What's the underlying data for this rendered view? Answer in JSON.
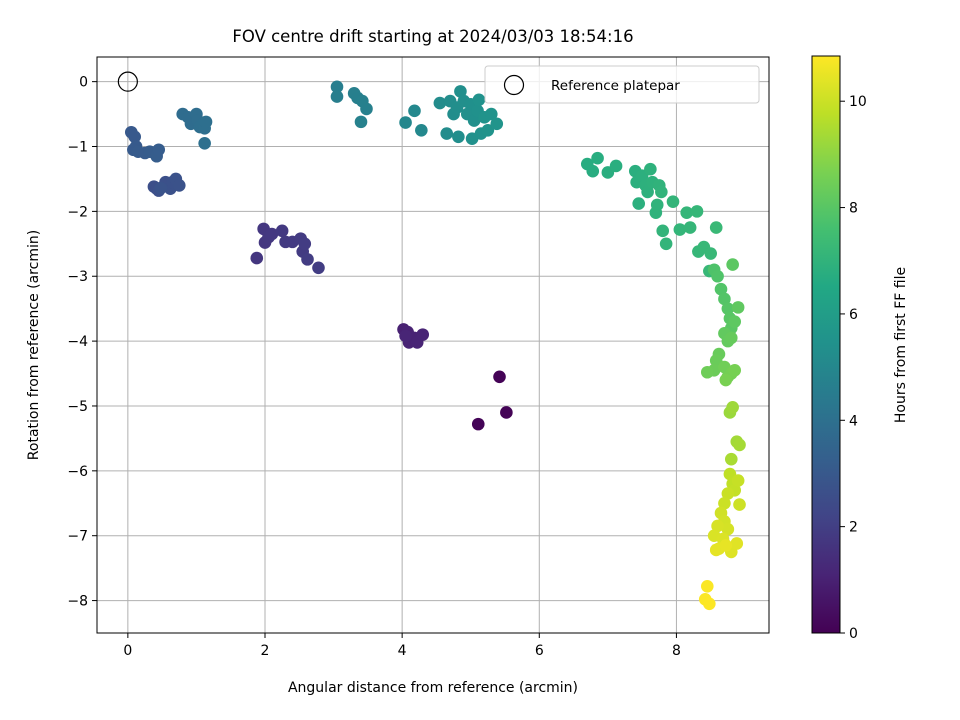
{
  "chart_data": {
    "type": "scatter",
    "title": "FOV centre drift starting at 2024/03/03 18:54:16",
    "xlabel": "Angular distance from reference (arcmin)",
    "ylabel": "Rotation from reference (arcmin)",
    "xlim": [
      -0.45,
      9.35
    ],
    "ylim": [
      -8.5,
      0.38
    ],
    "xticks": [
      0,
      2,
      4,
      6,
      8
    ],
    "yticks": [
      0,
      -1,
      -2,
      -3,
      -4,
      -5,
      -6,
      -7,
      -8
    ],
    "grid": true,
    "legend": {
      "placement": "top-right",
      "entries": [
        "Reference platepar"
      ]
    },
    "reference_point": {
      "x": 0,
      "y": 0,
      "label": "Reference platepar"
    },
    "colorbar": {
      "label": "Hours from first FF file",
      "range": [
        0,
        10.85
      ],
      "ticks": [
        0,
        2,
        4,
        6,
        8,
        10
      ],
      "colormap": "viridis",
      "colors": [
        "#440154",
        "#482475",
        "#414487",
        "#355f8d",
        "#2a788e",
        "#21918c",
        "#22a884",
        "#44bf70",
        "#7ad151",
        "#bddf26",
        "#fde725"
      ]
    },
    "series": [
      {
        "points": [
          [
            5.42,
            -4.55,
            0.05
          ],
          [
            5.52,
            -5.1,
            0.08
          ],
          [
            5.11,
            -5.28,
            0.1
          ],
          [
            4.02,
            -3.82,
            1.0
          ],
          [
            4.08,
            -3.86,
            1.02
          ],
          [
            4.1,
            -4.02,
            1.04
          ],
          [
            4.18,
            -3.95,
            1.06
          ],
          [
            4.22,
            -4.02,
            1.08
          ],
          [
            4.3,
            -3.9,
            1.1
          ],
          [
            4.05,
            -3.92,
            1.12
          ],
          [
            1.88,
            -2.72,
            1.7
          ],
          [
            1.98,
            -2.27,
            1.72
          ],
          [
            2.0,
            -2.48,
            1.74
          ],
          [
            2.05,
            -2.4,
            1.76
          ],
          [
            2.1,
            -2.35,
            1.78
          ],
          [
            2.25,
            -2.3,
            1.8
          ],
          [
            2.3,
            -2.47,
            1.82
          ],
          [
            2.4,
            -2.47,
            1.84
          ],
          [
            2.52,
            -2.42,
            1.86
          ],
          [
            2.55,
            -2.62,
            1.88
          ],
          [
            2.58,
            -2.5,
            1.9
          ],
          [
            2.62,
            -2.74,
            1.92
          ],
          [
            2.78,
            -2.87,
            1.94
          ],
          [
            0.38,
            -1.62,
            2.6
          ],
          [
            0.42,
            -1.65,
            2.62
          ],
          [
            0.45,
            -1.68,
            2.64
          ],
          [
            0.55,
            -1.55,
            2.66
          ],
          [
            0.62,
            -1.65,
            2.68
          ],
          [
            0.65,
            -1.55,
            2.7
          ],
          [
            0.7,
            -1.5,
            2.72
          ],
          [
            0.75,
            -1.6,
            2.74
          ],
          [
            0.48,
            -1.64,
            2.76
          ],
          [
            0.05,
            -0.78,
            3.0
          ],
          [
            0.1,
            -0.85,
            3.02
          ],
          [
            0.12,
            -1.0,
            3.04
          ],
          [
            0.08,
            -1.05,
            3.06
          ],
          [
            0.15,
            -1.08,
            3.08
          ],
          [
            0.25,
            -1.1,
            3.1
          ],
          [
            0.32,
            -1.08,
            3.12
          ],
          [
            0.4,
            -1.1,
            3.14
          ],
          [
            0.42,
            -1.15,
            3.16
          ],
          [
            0.45,
            -1.05,
            3.18
          ],
          [
            0.8,
            -0.5,
            3.8
          ],
          [
            0.88,
            -0.55,
            3.82
          ],
          [
            0.92,
            -0.65,
            3.84
          ],
          [
            1.0,
            -0.5,
            3.86
          ],
          [
            1.02,
            -0.6,
            3.88
          ],
          [
            1.05,
            -0.7,
            3.9
          ],
          [
            1.1,
            -0.65,
            3.92
          ],
          [
            1.12,
            -0.72,
            3.94
          ],
          [
            1.14,
            -0.62,
            3.96
          ],
          [
            1.12,
            -0.95,
            3.98
          ],
          [
            3.05,
            -0.08,
            4.6
          ],
          [
            3.05,
            -0.23,
            4.62
          ],
          [
            3.3,
            -0.18,
            4.64
          ],
          [
            3.35,
            -0.25,
            4.66
          ],
          [
            3.42,
            -0.3,
            4.68
          ],
          [
            3.48,
            -0.42,
            4.7
          ],
          [
            3.4,
            -0.62,
            4.72
          ],
          [
            4.05,
            -0.63,
            5.0
          ],
          [
            4.18,
            -0.45,
            5.02
          ],
          [
            4.28,
            -0.75,
            5.04
          ],
          [
            4.55,
            -0.33,
            5.2
          ],
          [
            4.65,
            -0.8,
            5.22
          ],
          [
            4.7,
            -0.3,
            5.24
          ],
          [
            4.75,
            -0.5,
            5.26
          ],
          [
            4.8,
            -0.4,
            5.28
          ],
          [
            4.82,
            -0.85,
            5.3
          ],
          [
            4.85,
            -0.15,
            5.32
          ],
          [
            4.9,
            -0.3,
            5.34
          ],
          [
            4.95,
            -0.5,
            5.36
          ],
          [
            5.0,
            -0.35,
            5.38
          ],
          [
            5.05,
            -0.6,
            5.4
          ],
          [
            5.02,
            -0.88,
            5.42
          ],
          [
            5.1,
            -0.45,
            5.44
          ],
          [
            5.12,
            -0.28,
            5.46
          ],
          [
            5.15,
            -0.8,
            5.48
          ],
          [
            5.2,
            -0.55,
            5.5
          ],
          [
            5.25,
            -0.75,
            5.52
          ],
          [
            5.3,
            -0.5,
            5.54
          ],
          [
            5.38,
            -0.65,
            5.56
          ],
          [
            6.7,
            -1.27,
            6.7
          ],
          [
            6.78,
            -1.38,
            6.72
          ],
          [
            6.85,
            -1.18,
            6.74
          ],
          [
            7.0,
            -1.4,
            6.76
          ],
          [
            7.12,
            -1.3,
            6.78
          ],
          [
            7.4,
            -1.38,
            6.8
          ],
          [
            7.42,
            -1.55,
            6.82
          ],
          [
            7.45,
            -1.88,
            6.84
          ],
          [
            7.5,
            -1.45,
            6.86
          ],
          [
            7.55,
            -1.6,
            6.88
          ],
          [
            7.58,
            -1.7,
            6.9
          ],
          [
            7.62,
            -1.35,
            6.92
          ],
          [
            7.65,
            -1.55,
            6.94
          ],
          [
            7.7,
            -2.02,
            6.96
          ],
          [
            7.72,
            -1.9,
            6.98
          ],
          [
            7.75,
            -1.6,
            7.0
          ],
          [
            7.78,
            -1.7,
            7.02
          ],
          [
            7.8,
            -2.3,
            7.04
          ],
          [
            7.85,
            -2.5,
            7.06
          ],
          [
            7.95,
            -1.85,
            7.08
          ],
          [
            8.05,
            -2.28,
            7.1
          ],
          [
            8.15,
            -2.02,
            7.12
          ],
          [
            8.2,
            -2.25,
            7.14
          ],
          [
            8.3,
            -2.0,
            7.16
          ],
          [
            8.32,
            -2.62,
            7.18
          ],
          [
            8.4,
            -2.55,
            7.2
          ],
          [
            8.48,
            -2.92,
            7.22
          ],
          [
            8.5,
            -2.65,
            7.24
          ],
          [
            8.58,
            -2.25,
            7.26
          ],
          [
            8.55,
            -2.9,
            7.8
          ],
          [
            8.6,
            -3.0,
            7.84
          ],
          [
            8.65,
            -3.2,
            7.88
          ],
          [
            8.7,
            -3.35,
            7.92
          ],
          [
            8.75,
            -3.5,
            7.96
          ],
          [
            8.78,
            -3.65,
            8.0
          ],
          [
            8.8,
            -3.8,
            8.04
          ],
          [
            8.82,
            -2.82,
            8.08
          ],
          [
            8.85,
            -3.7,
            8.12
          ],
          [
            8.9,
            -3.48,
            8.16
          ],
          [
            8.7,
            -3.88,
            8.2
          ],
          [
            8.75,
            -4.0,
            8.24
          ],
          [
            8.8,
            -3.95,
            8.28
          ],
          [
            8.62,
            -4.2,
            8.32
          ],
          [
            8.58,
            -4.3,
            8.36
          ],
          [
            8.55,
            -4.45,
            8.4
          ],
          [
            8.45,
            -4.48,
            8.44
          ],
          [
            8.7,
            -4.4,
            8.48
          ],
          [
            8.75,
            -4.55,
            8.52
          ],
          [
            8.8,
            -4.5,
            8.56
          ],
          [
            8.85,
            -4.45,
            8.6
          ],
          [
            8.72,
            -4.6,
            8.64
          ],
          [
            8.78,
            -5.1,
            9.2
          ],
          [
            8.82,
            -5.02,
            9.26
          ],
          [
            8.88,
            -5.55,
            9.32
          ],
          [
            8.92,
            -5.6,
            9.38
          ],
          [
            8.8,
            -5.82,
            9.44
          ],
          [
            8.78,
            -6.05,
            9.8
          ],
          [
            8.82,
            -6.2,
            9.84
          ],
          [
            8.85,
            -6.3,
            9.88
          ],
          [
            8.9,
            -6.15,
            9.92
          ],
          [
            8.75,
            -6.35,
            9.96
          ],
          [
            8.7,
            -6.5,
            10.0
          ],
          [
            8.92,
            -6.52,
            10.04
          ],
          [
            8.65,
            -6.65,
            10.08
          ],
          [
            8.7,
            -6.78,
            10.12
          ],
          [
            8.75,
            -6.9,
            10.16
          ],
          [
            8.6,
            -6.85,
            10.2
          ],
          [
            8.55,
            -7.0,
            10.24
          ],
          [
            8.68,
            -7.05,
            10.28
          ],
          [
            8.8,
            -7.25,
            10.32
          ],
          [
            8.88,
            -7.12,
            10.36
          ],
          [
            8.62,
            -7.2,
            10.4
          ],
          [
            8.58,
            -7.22,
            10.44
          ],
          [
            8.72,
            -7.15,
            10.48
          ],
          [
            8.45,
            -7.78,
            10.8
          ],
          [
            8.42,
            -7.98,
            10.82
          ],
          [
            8.48,
            -8.05,
            10.84
          ]
        ]
      }
    ]
  }
}
